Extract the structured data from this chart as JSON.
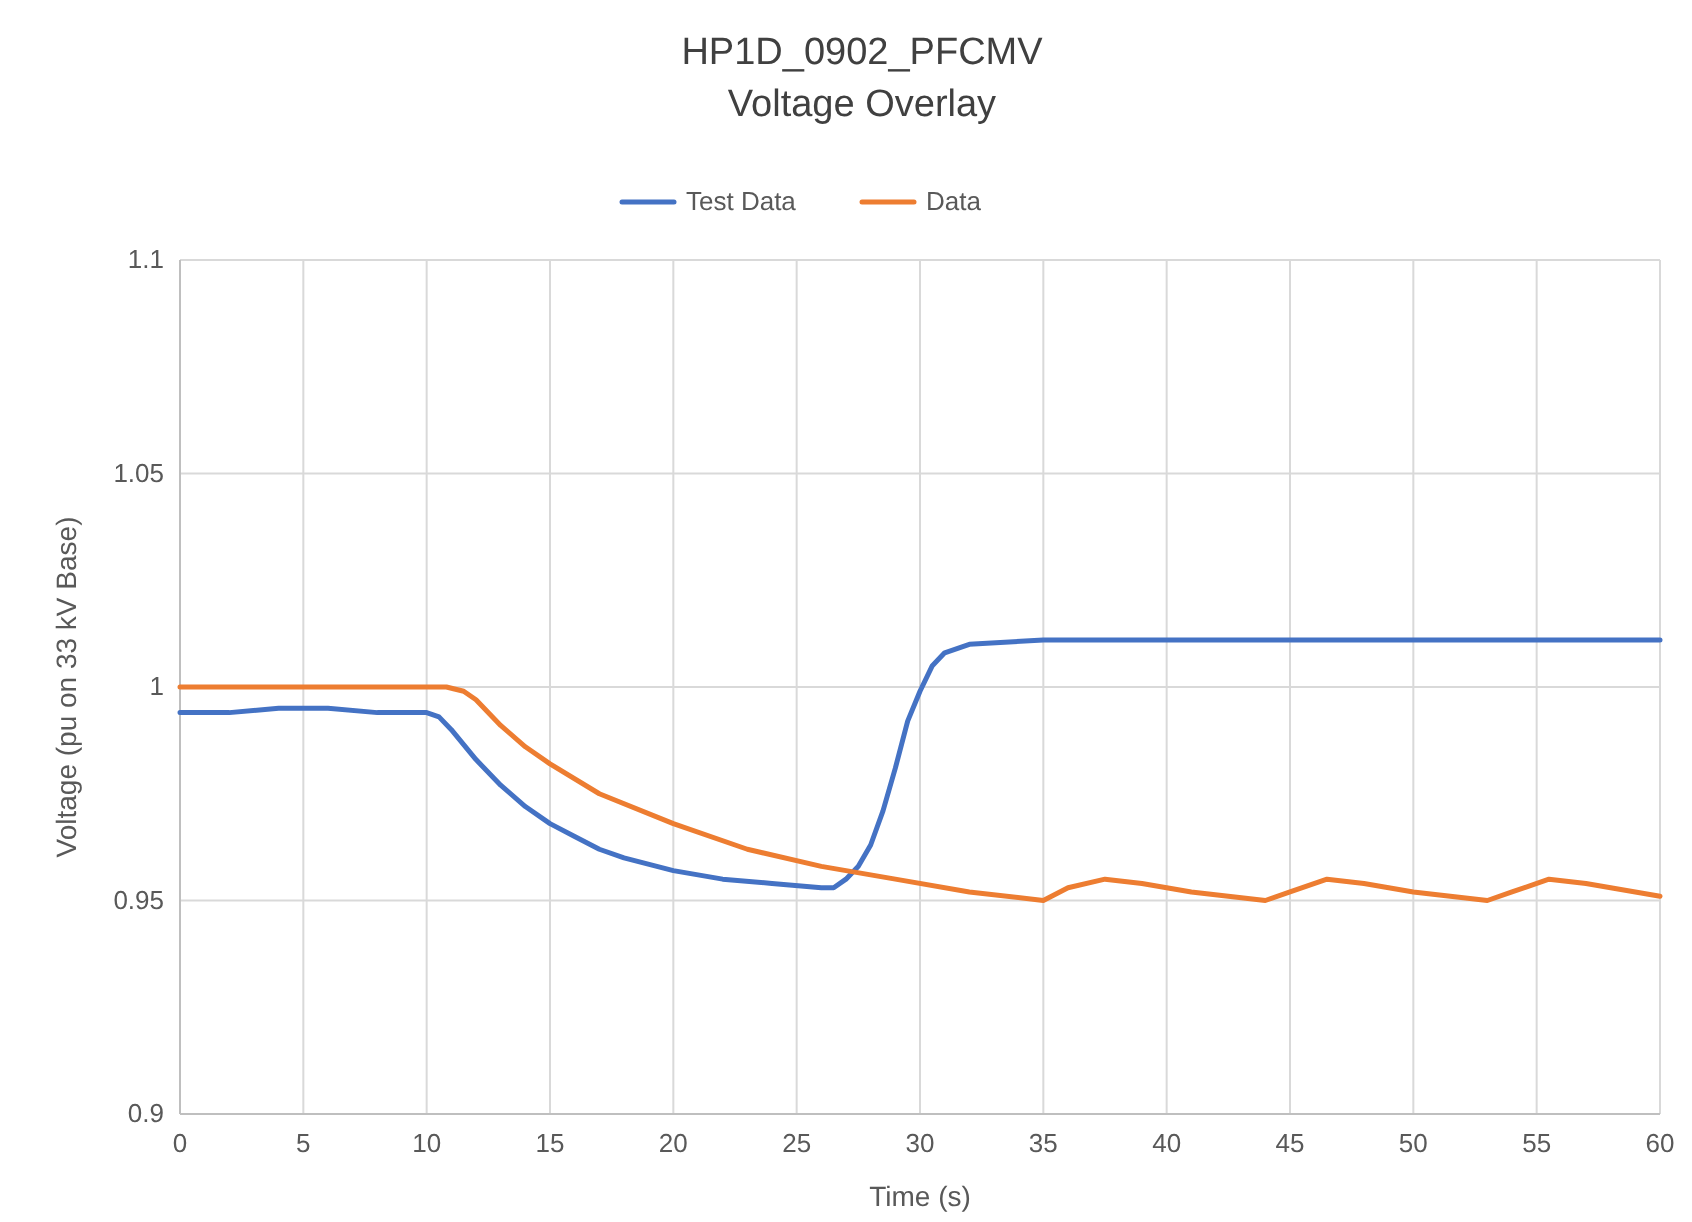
{
  "chart_data": {
    "type": "line",
    "title": "HP1D_0902_PFCMV",
    "subtitle": "Voltage Overlay",
    "xlabel": "Time (s)",
    "ylabel": "Voltage (pu on 33 kV Base)",
    "xlim": [
      0,
      60
    ],
    "xticks": [
      0,
      5,
      10,
      15,
      20,
      25,
      30,
      35,
      40,
      45,
      50,
      55,
      60
    ],
    "ylim": [
      0.9,
      1.1
    ],
    "yticks": [
      0.9,
      0.95,
      1,
      1.05,
      1.1
    ],
    "grid": true,
    "legend": "top",
    "marker": "none",
    "line_style": "solid",
    "series": [
      {
        "name": "Test Data",
        "color": "#4472c4",
        "x": [
          0,
          2,
          4,
          6,
          8,
          10,
          10.5,
          11,
          12,
          13,
          14,
          15,
          16,
          17,
          18,
          20,
          22,
          24,
          26,
          26.5,
          27,
          27.5,
          28,
          28.5,
          29,
          29.5,
          30,
          30.5,
          31,
          32,
          35,
          40,
          45,
          50,
          55,
          60
        ],
        "values": [
          0.994,
          0.994,
          0.995,
          0.995,
          0.994,
          0.994,
          0.993,
          0.99,
          0.983,
          0.977,
          0.972,
          0.968,
          0.965,
          0.962,
          0.96,
          0.957,
          0.955,
          0.954,
          0.953,
          0.953,
          0.955,
          0.958,
          0.963,
          0.971,
          0.981,
          0.992,
          0.999,
          1.005,
          1.008,
          1.01,
          1.011,
          1.011,
          1.011,
          1.011,
          1.011,
          1.011
        ]
      },
      {
        "name": "Data",
        "color": "#ed7d31",
        "x": [
          0,
          5,
          10,
          10.8,
          11.5,
          12,
          13,
          14,
          15,
          17,
          20,
          23,
          26,
          29,
          32,
          35,
          36,
          37.5,
          39,
          41,
          44,
          45,
          46.5,
          48,
          50,
          53,
          54,
          55.5,
          57,
          60
        ],
        "values": [
          1,
          1,
          1,
          1,
          0.999,
          0.997,
          0.991,
          0.986,
          0.982,
          0.975,
          0.968,
          0.962,
          0.958,
          0.955,
          0.952,
          0.95,
          0.953,
          0.955,
          0.954,
          0.952,
          0.95,
          0.952,
          0.955,
          0.954,
          0.952,
          0.95,
          0.952,
          0.955,
          0.954,
          0.951
        ]
      }
    ]
  }
}
